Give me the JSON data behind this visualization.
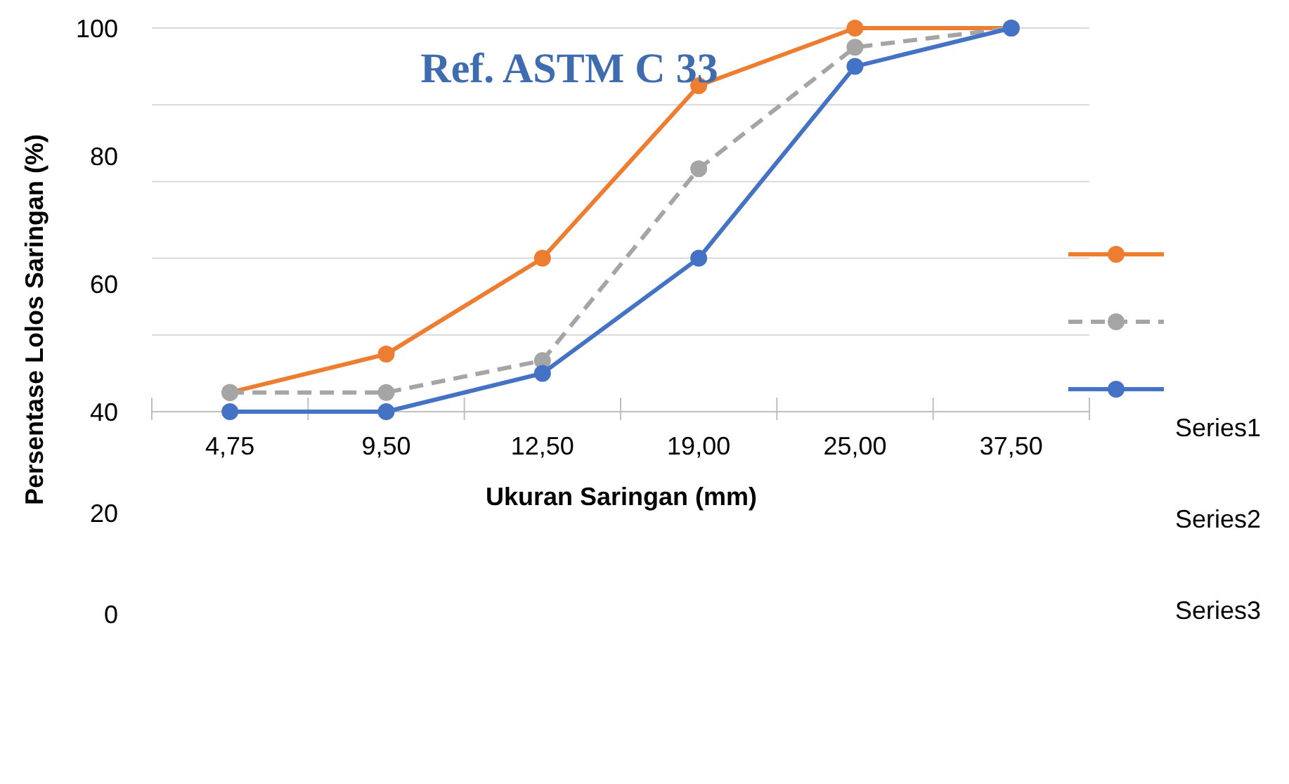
{
  "chart_data": {
    "type": "line",
    "title": "Ref. ASTM C 33",
    "xlabel": "Ukuran Saringan (mm)",
    "ylabel": "Persentase Lolos Saringan (%)",
    "categories": [
      "4,75",
      "9,50",
      "12,50",
      "19,00",
      "25,00",
      "37,50"
    ],
    "series": [
      {
        "name": "Series1",
        "color": "#ed7d31",
        "values": [
          43,
          49,
          64,
          91,
          100,
          100
        ],
        "line_style": "solid"
      },
      {
        "name": "Series2",
        "color": "#a5a5a5",
        "values": [
          43,
          43,
          48,
          78,
          97,
          100
        ],
        "line_style": "dashed"
      },
      {
        "name": "Series3",
        "color": "#4472c4",
        "values": [
          40,
          40,
          46,
          64,
          94,
          100
        ],
        "line_style": "solid"
      }
    ],
    "ylim": [
      40,
      100
    ],
    "yticks": [
      40,
      {
        "value": 52,
        "label": null
      },
      60,
      {
        "value": 64,
        "label": null
      },
      {
        "value": 76,
        "label": null
      },
      80,
      {
        "value": 88,
        "label": null
      },
      100
    ],
    "annotations": [
      "20",
      "0"
    ],
    "grid": "y",
    "legend": "right",
    "marker": "circle"
  }
}
